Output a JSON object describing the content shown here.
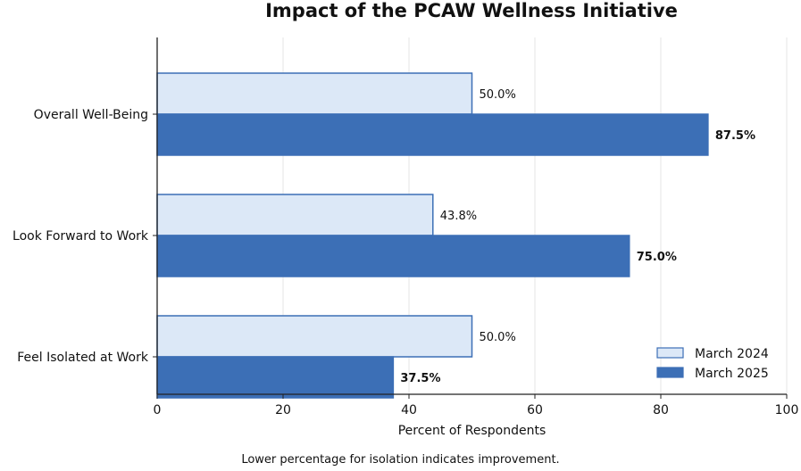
{
  "chart_data": {
    "type": "bar",
    "orientation": "horizontal",
    "title": "Impact of the PCAW Wellness Initiative",
    "xlabel": "Percent of Respondents",
    "ylabel": "",
    "xlim": [
      0,
      100
    ],
    "xticks": [
      0,
      20,
      40,
      60,
      80,
      100
    ],
    "categories": [
      "Overall Well-Being",
      "Look Forward to Work",
      "Feel Isolated at Work"
    ],
    "series": [
      {
        "name": "March 2024",
        "values": [
          50.0,
          43.8,
          50.0
        ],
        "labels": [
          "50.0%",
          "43.8%",
          "50.0%"
        ],
        "color": "#dce8f7",
        "edge": "#3c6fb6",
        "label_weight": "normal"
      },
      {
        "name": "March 2025",
        "values": [
          87.5,
          75.0,
          37.5
        ],
        "labels": [
          "87.5%",
          "75.0%",
          "37.5%"
        ],
        "color": "#3c6fb6",
        "edge": "#3c6fb6",
        "label_weight": "bold"
      }
    ],
    "grid": {
      "x": true,
      "y": false
    },
    "legend_position": "bottom-right",
    "note": "Lower percentage for isolation indicates improvement."
  }
}
